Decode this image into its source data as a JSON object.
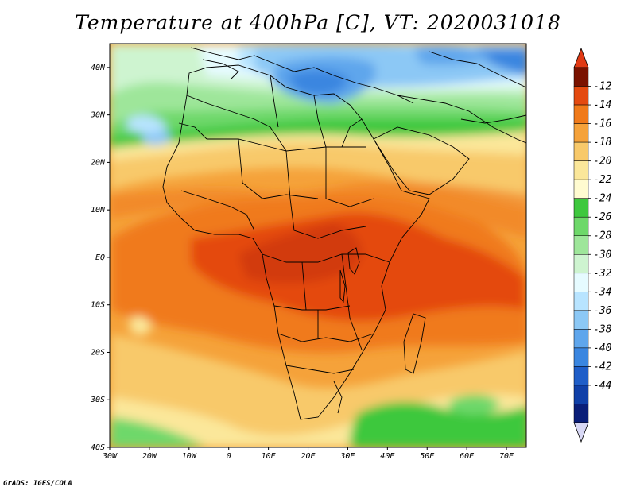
{
  "title": "Temperature at 400hPa [C], VT: 2020031018",
  "credit": "GrADS: IGES/COLA",
  "map": {
    "region": "Africa and surrounding oceans",
    "lon_range": [
      -30,
      75
    ],
    "lat_range": [
      -40,
      45
    ],
    "lon_ticks": [
      "30W",
      "20W",
      "10W",
      "0",
      "10E",
      "20E",
      "30E",
      "40E",
      "50E",
      "60E",
      "70E"
    ],
    "lat_ticks": [
      "40N",
      "30N",
      "20N",
      "10N",
      "EQ",
      "10S",
      "20S",
      "30S",
      "40S"
    ],
    "field": "temperature",
    "level": "400hPa",
    "units": "C",
    "valid_time": "2020031018"
  },
  "colorbar": {
    "labels": [
      "-12",
      "-14",
      "-16",
      "-18",
      "-20",
      "-22",
      "-24",
      "-26",
      "-28",
      "-30",
      "-32",
      "-34",
      "-36",
      "-38",
      "-40",
      "-42",
      "-44"
    ],
    "colors": [
      "#7a1200",
      "#e44a10",
      "#f07a1a",
      "#f5a23a",
      "#f8c96a",
      "#fbe79a",
      "#fffbd0",
      "#3ec83e",
      "#6ed86a",
      "#9ee69a",
      "#cef4d0",
      "#e6fbff",
      "#b8e4ff",
      "#8cc8f5",
      "#5fa6ec",
      "#3a86e0",
      "#1f5ec8",
      "#1040a8",
      "#0a1e78"
    ],
    "under_color": "#d8d8f5",
    "over_color": "#e23a14"
  }
}
